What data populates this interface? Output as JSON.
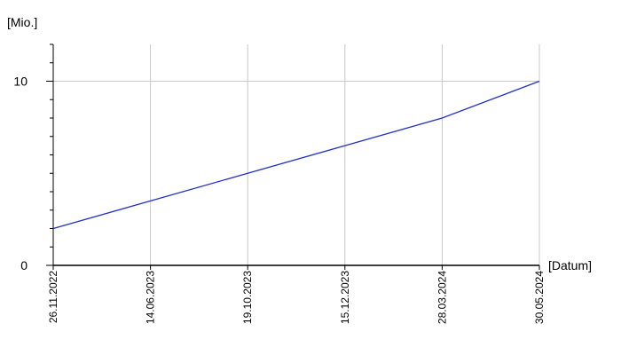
{
  "chart_data": {
    "type": "line",
    "y_axis_label": "[Mio.]",
    "x_axis_label": "[Datum]",
    "categories": [
      "26.11.2022",
      "14.06.2023",
      "19.10.2023",
      "15.12.2023",
      "28.03.2024",
      "30.05.2024"
    ],
    "values": [
      2,
      3.5,
      5,
      6.5,
      8,
      10
    ],
    "color": "#1f2fc8",
    "ylim": [
      0,
      12
    ],
    "yticks": [
      0,
      10
    ],
    "grid": true
  }
}
